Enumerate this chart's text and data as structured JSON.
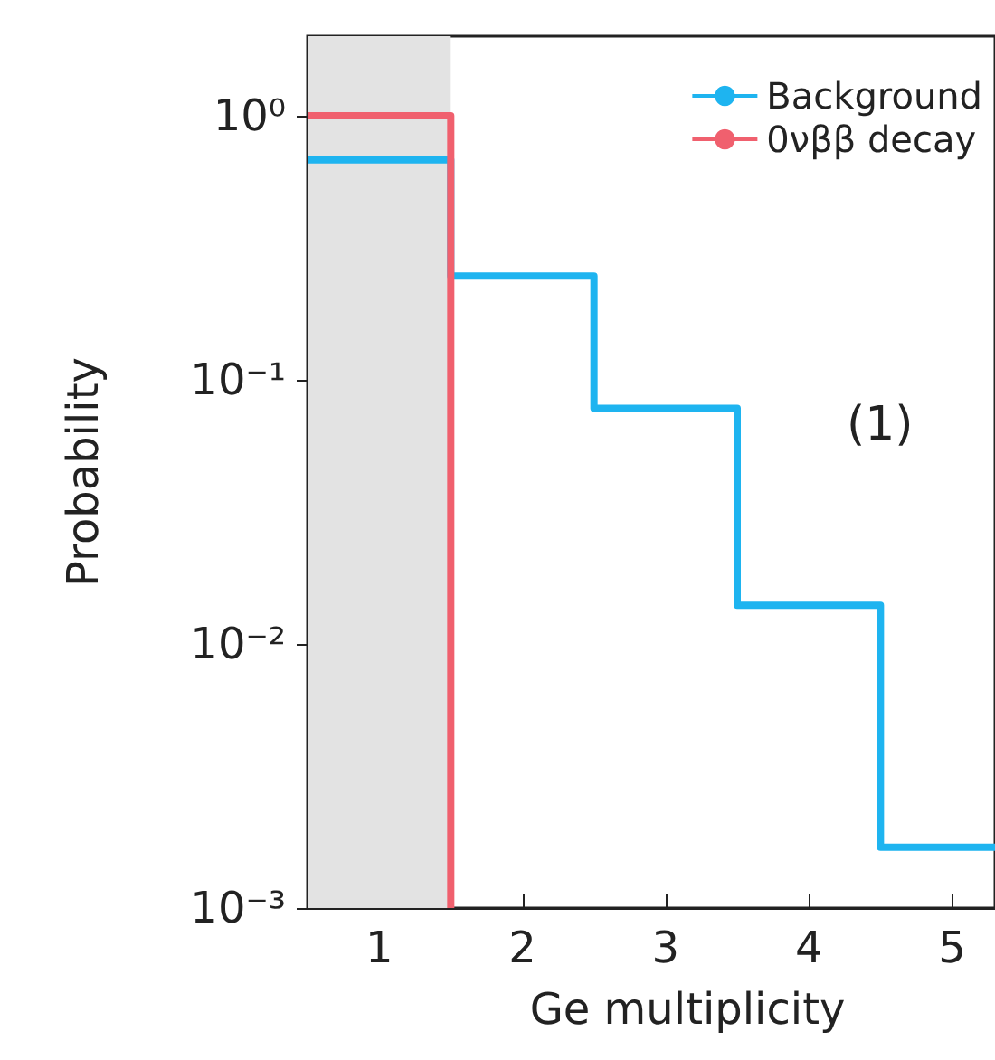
{
  "chart_data": {
    "type": "step",
    "xlabel": "Ge multiplicity",
    "ylabel": "Probability",
    "annotations": [
      "(1)"
    ],
    "xlim": [
      0.5,
      5.3
    ],
    "xticks": [
      1,
      2,
      3,
      4,
      5
    ],
    "ylim": [
      0.001,
      2
    ],
    "log": "y",
    "yticks": [
      {
        "value": 0.001,
        "label": "10⁻³"
      },
      {
        "value": 0.01,
        "label": "10⁻²"
      },
      {
        "value": 0.1,
        "label": "10⁻¹"
      },
      {
        "value": 1,
        "label": "10⁰"
      }
    ],
    "series": [
      {
        "name": "Background",
        "color": "#1eb4f0",
        "x": [
          0.5,
          1.5,
          2.5,
          3.5,
          4.5,
          5.3
        ],
        "values": [
          0.68,
          0.247,
          0.078,
          0.014,
          0.0017,
          0.0017
        ]
      },
      {
        "name": "0νββ decay",
        "type": "step",
        "color": "#f0606e",
        "x": [
          0.5,
          1.5
        ],
        "values": [
          1,
          0.001
        ]
      }
    ],
    "bands": [
      {
        "axis": "x",
        "from": 0.5,
        "to": 1.5,
        "color": "#e3e3e3"
      }
    ],
    "grid": false,
    "legend": "top right",
    "marker": "none",
    "line_style": "solid"
  }
}
